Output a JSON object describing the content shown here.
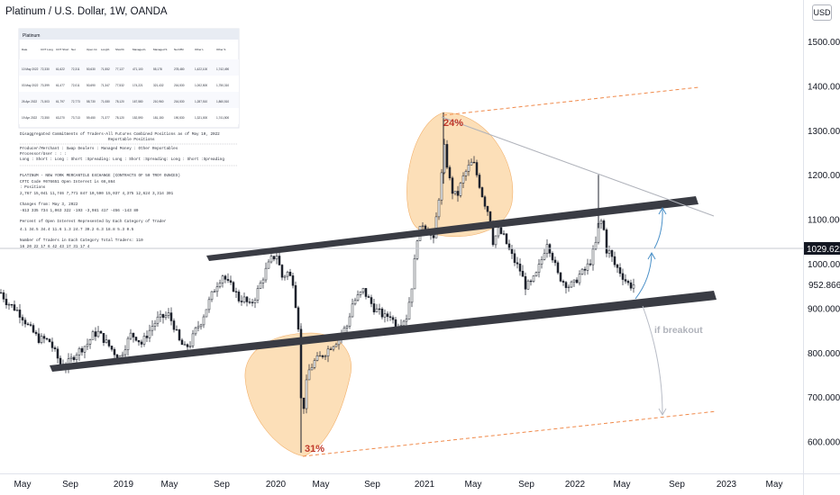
{
  "header": {
    "title": "Platinum / U.S. Dollar, 1W, OANDA",
    "currency_button": "USD"
  },
  "colors": {
    "up_candle": "#2b2b2b",
    "channel_band": "#3a3c44",
    "ellipse_fill": "#fbd7a6",
    "ellipse_label": "#c0392b",
    "dashed_orange": "#f08a4b",
    "arrow_blue": "#4a90c8",
    "arrow_gray": "#b8bcc6",
    "price_label_bg": "#131722"
  },
  "price_axis": {
    "ticks": [
      "1500.000",
      "1400.000",
      "1300.000",
      "1200.000",
      "1100.000",
      "1000.000",
      "900.000",
      "800.000",
      "700.000",
      "600.000"
    ],
    "last_price": "1029.622",
    "crosshair_price": "952.866"
  },
  "time_axis": {
    "ticks": [
      "May",
      "Sep",
      "2019",
      "May",
      "Sep",
      "2020",
      "May",
      "Sep",
      "2021",
      "May",
      "Sep",
      "2022",
      "May",
      "Sep",
      "2023",
      "May"
    ]
  },
  "annotations": {
    "top_pct": "24%",
    "bottom_pct": "31%",
    "breakout_label": "if breakout"
  },
  "cot_table": {
    "title": "Disaggregated Commitments of Traders-All Futures Combined Positions as of May 10, 2022",
    "subtitle": "Reportable Positions",
    "cols": "Producer/Merchant :  Swap Dealers  :  Managed Money  :  Other Reportables",
    "cols2": "Processor/User    :               :                 :",
    "cols3": "Long : Short  :  Long : Short :Spreading:  Long : Short :Spreading:  Long : Short :Spreading",
    "line1": "PLATINUM - NEW YORK MERCANTILE EXCHANGE   (CONTRACTS OF 50 TROY OUNCES)",
    "line2": "CFTC Code #076651                                        Open Interest is   66,864",
    "line3": ": Positions",
    "line4": "  2,767   15,041  11,746   7,771     847  10,590  15,037   4,375   12,624   3,314     301",
    "line5": "Changes from:     May 3, 2022",
    "line6": "   -613     335     734    1,063     322    -193   -3,981     417     -456    -143      80",
    "line7": "Percent of Open Interest Represented by Each Category of Trader",
    "line8": "    4.1    34.5    34.4    11.6     1.3    24.7    30.2     6.3     18.8     5.3     0.5",
    "line9": "Number of Traders in Each Category                               Total Traders:   110",
    "line10": "     16      20      22      17       6      42      43      17       31      17       4"
  },
  "mini_table": {
    "title": "Platinum",
    "headers": [
      "Date",
      "COT Long",
      "COT Short",
      "Net",
      "Open Int",
      "Long%",
      "Short%",
      "Managed L",
      "Managed S",
      "Net MM",
      "Other L",
      "Other S"
    ],
    "rows": [
      [
        "10 May 2022",
        "72,330",
        "61,622",
        "72,311",
        "50,630",
        "71,552",
        "77,127",
        "471,100",
        "55,178",
        "278,480",
        "1,422,100",
        "1,742,490"
      ],
      [
        "03 May 2022",
        "70,399",
        "61,477",
        "72,011",
        "50,690",
        "71,347",
        "77,532",
        "174,221",
        "321,432",
        "216,530",
        "1,002,500",
        "1,750,310"
      ],
      [
        "26 Apr 2022",
        "71,503",
        "61,797",
        "72,773",
        "58,730",
        "71,080",
        "78,120",
        "167,580",
        "210,960",
        "216,530",
        "1,287,510",
        "1,860,510"
      ],
      [
        "19 Apr 2022",
        "72,350",
        "63,270",
        "73,713",
        "59,450",
        "71,377",
        "78,120",
        "152,590",
        "181,150",
        "190,530",
        "1,321,000",
        "1,741,500"
      ]
    ]
  },
  "chart_data": {
    "type": "candlestick",
    "title": "Platinum / U.S. Dollar, 1W, OANDA",
    "ylim": [
      540,
      1560
    ],
    "yticks": [
      1500,
      1400,
      1300,
      1200,
      1100,
      1000,
      900,
      800,
      700,
      600
    ],
    "last_price": 1029.622,
    "crosshair_price": 952.866,
    "x_ticks": [
      "May",
      "Sep",
      "2019",
      "May",
      "Sep",
      "2020",
      "May",
      "Sep",
      "2021",
      "May",
      "Sep",
      "2022",
      "May",
      "Sep",
      "2023",
      "May"
    ],
    "price_path": [
      [
        0,
        935
      ],
      [
        6,
        915
      ],
      [
        12,
        905
      ],
      [
        18,
        895
      ],
      [
        24,
        880
      ],
      [
        30,
        860
      ],
      [
        36,
        845
      ],
      [
        42,
        830
      ],
      [
        48,
        830
      ],
      [
        54,
        825
      ],
      [
        60,
        800
      ],
      [
        66,
        775
      ],
      [
        72,
        770
      ],
      [
        78,
        785
      ],
      [
        84,
        800
      ],
      [
        90,
        810
      ],
      [
        96,
        820
      ],
      [
        102,
        840
      ],
      [
        108,
        845
      ],
      [
        114,
        830
      ],
      [
        120,
        815
      ],
      [
        126,
        800
      ],
      [
        132,
        790
      ],
      [
        138,
        815
      ],
      [
        144,
        840
      ],
      [
        150,
        835
      ],
      [
        156,
        820
      ],
      [
        162,
        840
      ],
      [
        168,
        860
      ],
      [
        174,
        875
      ],
      [
        180,
        880
      ],
      [
        186,
        885
      ],
      [
        192,
        860
      ],
      [
        198,
        825
      ],
      [
        204,
        810
      ],
      [
        210,
        820
      ],
      [
        216,
        850
      ],
      [
        222,
        870
      ],
      [
        228,
        900
      ],
      [
        234,
        930
      ],
      [
        240,
        955
      ],
      [
        246,
        975
      ],
      [
        252,
        955
      ],
      [
        258,
        945
      ],
      [
        264,
        920
      ],
      [
        270,
        920
      ],
      [
        276,
        905
      ],
      [
        282,
        925
      ],
      [
        288,
        955
      ],
      [
        294,
        985
      ],
      [
        300,
        1010
      ],
      [
        306,
        1020
      ],
      [
        312,
        970
      ],
      [
        318,
        980
      ],
      [
        324,
        960
      ],
      [
        330,
        860
      ],
      [
        334,
        640
      ],
      [
        338,
        720
      ],
      [
        342,
        760
      ],
      [
        348,
        780
      ],
      [
        354,
        790
      ],
      [
        360,
        800
      ],
      [
        366,
        815
      ],
      [
        372,
        825
      ],
      [
        378,
        845
      ],
      [
        384,
        860
      ],
      [
        390,
        910
      ],
      [
        396,
        925
      ],
      [
        402,
        940
      ],
      [
        408,
        920
      ],
      [
        414,
        900
      ],
      [
        420,
        890
      ],
      [
        426,
        880
      ],
      [
        432,
        885
      ],
      [
        438,
        860
      ],
      [
        444,
        870
      ],
      [
        450,
        880
      ],
      [
        456,
        950
      ],
      [
        462,
        1060
      ],
      [
        468,
        1090
      ],
      [
        474,
        1075
      ],
      [
        480,
        1050
      ],
      [
        484,
        1120
      ],
      [
        488,
        1180
      ],
      [
        492,
        1260
      ],
      [
        496,
        1210
      ],
      [
        500,
        1165
      ],
      [
        506,
        1150
      ],
      [
        512,
        1190
      ],
      [
        518,
        1215
      ],
      [
        524,
        1230
      ],
      [
        530,
        1185
      ],
      [
        536,
        1140
      ],
      [
        542,
        1110
      ],
      [
        546,
        1050
      ],
      [
        552,
        1075
      ],
      [
        558,
        1060
      ],
      [
        564,
        1030
      ],
      [
        570,
        1005
      ],
      [
        576,
        985
      ],
      [
        582,
        950
      ],
      [
        588,
        955
      ],
      [
        594,
        975
      ],
      [
        600,
        1010
      ],
      [
        606,
        1050
      ],
      [
        612,
        1015
      ],
      [
        618,
        975
      ],
      [
        624,
        960
      ],
      [
        630,
        950
      ],
      [
        636,
        955
      ],
      [
        642,
        975
      ],
      [
        648,
        985
      ],
      [
        654,
        1005
      ],
      [
        660,
        1045
      ],
      [
        664,
        1100
      ],
      [
        668,
        1090
      ],
      [
        672,
        1030
      ],
      [
        676,
        1025
      ],
      [
        680,
        1000
      ],
      [
        686,
        985
      ],
      [
        692,
        965
      ],
      [
        698,
        950
      ],
      [
        704,
        955
      ]
    ],
    "annotations": [
      {
        "type": "channel",
        "label": ""
      },
      {
        "type": "ellipse",
        "label": "24%"
      },
      {
        "type": "ellipse",
        "label": "31%"
      },
      {
        "type": "text",
        "label": "if breakout"
      }
    ]
  }
}
